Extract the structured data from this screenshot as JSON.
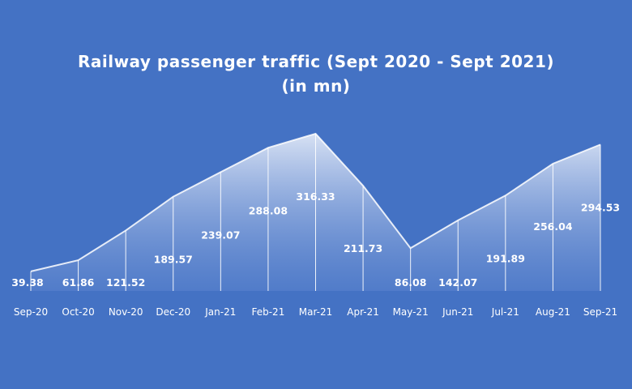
{
  "chart_data": {
    "type": "area",
    "title": "Railway passenger traffic (Sept 2020 - Sept 2021)",
    "subtitle": "(in mn)",
    "categories": [
      "Sep-20",
      "Oct-20",
      "Nov-20",
      "Dec-20",
      "Jan-21",
      "Feb-21",
      "Mar-21",
      "Apr-21",
      "May-21",
      "Jun-21",
      "Jul-21",
      "Aug-21",
      "Sep-21"
    ],
    "values": [
      39.38,
      61.86,
      121.52,
      189.57,
      239.07,
      288.08,
      316.33,
      211.73,
      86.08,
      142.07,
      191.89,
      256.04,
      294.53
    ],
    "data_labels": [
      "39.38",
      "61.86",
      "121.52",
      "189.57",
      "239.07",
      "288.08",
      "316.33",
      "211.73",
      "86.08",
      "142.07",
      "191.89",
      "256.04",
      "294.53"
    ],
    "ylim": [
      0,
      316.33
    ],
    "grid": false,
    "legend": "none",
    "colors": {
      "background": "#4472c4",
      "area_top": "#dfe7f6",
      "area_bottom": "#6a8fd4",
      "line": "#ffffff",
      "text": "#ffffff"
    }
  }
}
